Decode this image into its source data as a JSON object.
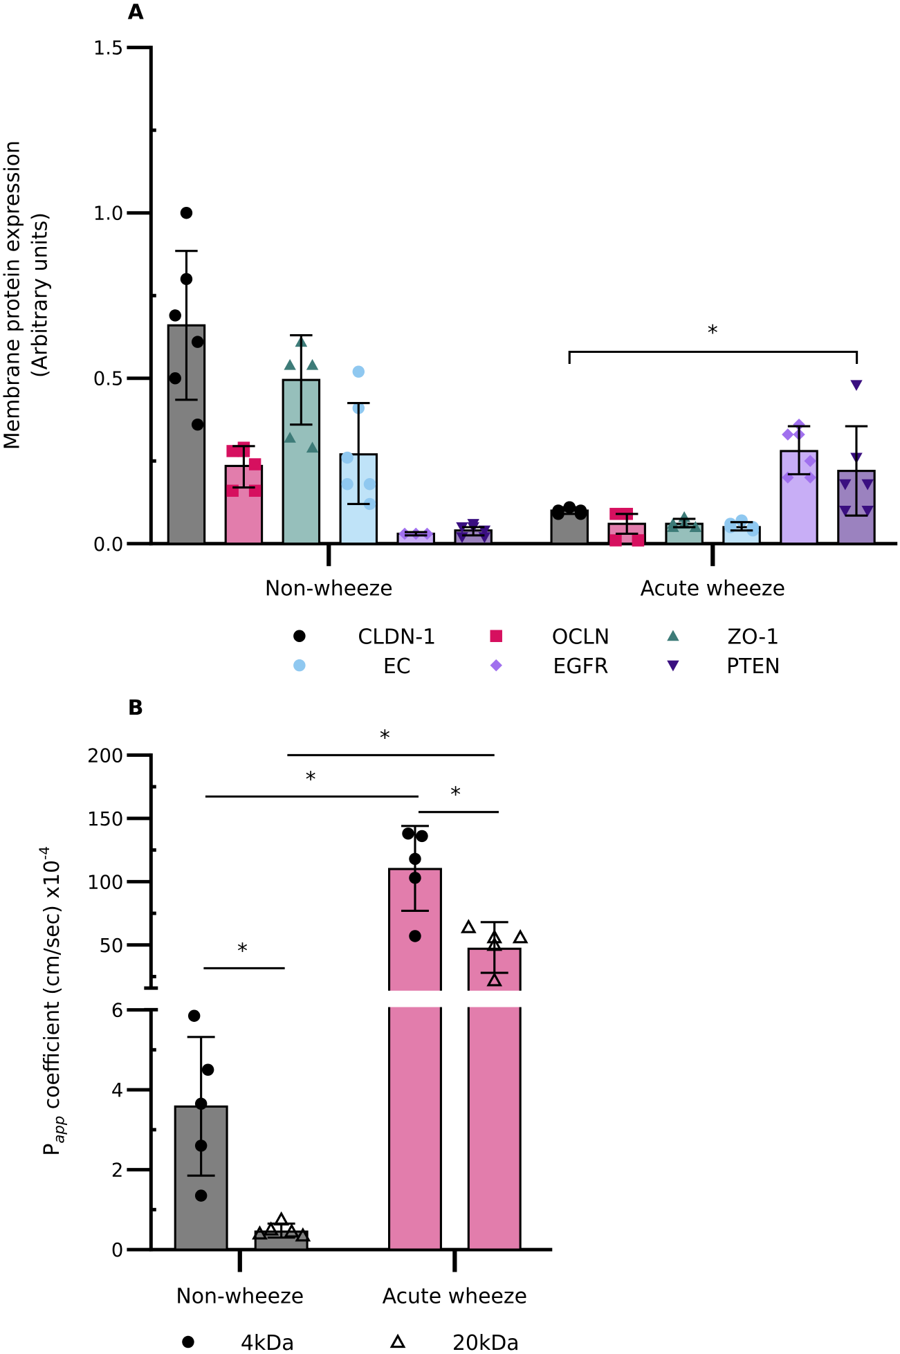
{
  "chart_data": [
    {
      "panel": "A",
      "type": "bar",
      "ylabel_line1": "Membrane protein expression",
      "ylabel_line2": "(Arbitrary units)",
      "ylim": [
        0,
        1.5
      ],
      "yticks": [
        "0.0",
        "0.5",
        "1.0",
        "1.5"
      ],
      "ytick_values": [
        0,
        0.5,
        1.0,
        1.5
      ],
      "categories": [
        "Non-wheeze",
        "Acute wheeze"
      ],
      "series": [
        {
          "name": "CLDN-1",
          "bar_color": "#808080",
          "marker_color": "#000000",
          "marker": "circle",
          "values": [
            0.66,
            0.1
          ],
          "err_hi": [
            0.885,
            0.11
          ],
          "err_lo": [
            0.435,
            0.09
          ],
          "points": [
            [
              1.0,
              0.8,
              0.69,
              0.61,
              0.5,
              0.36
            ],
            [
              0.11,
              0.11,
              0.1,
              0.1,
              0.09,
              0.09
            ]
          ]
        },
        {
          "name": "OCLN",
          "bar_color": "#e27dac",
          "marker_color": "#d6105f",
          "marker": "square",
          "values": [
            0.235,
            0.06
          ],
          "err_hi": [
            0.295,
            0.09
          ],
          "err_lo": [
            0.17,
            0.03
          ],
          "points": [
            [
              0.29,
              0.28,
              0.28,
              0.24,
              0.16,
              0.16
            ],
            [
              0.09,
              0.09,
              0.09,
              0.01,
              0.01,
              0.01
            ]
          ]
        },
        {
          "name": "ZO-1",
          "bar_color": "#96bfbb",
          "marker_color": "#3d7b78",
          "marker": "triangle-up",
          "values": [
            0.495,
            0.06
          ],
          "err_hi": [
            0.63,
            0.075
          ],
          "err_lo": [
            0.36,
            0.05
          ],
          "points": [
            [
              0.61,
              0.61,
              0.54,
              0.54,
              0.32,
              0.29
            ],
            [
              0.08,
              0.06,
              0.06,
              0.05,
              0.05,
              0.05
            ]
          ]
        },
        {
          "name": "EC",
          "bar_color": "#bfe3f8",
          "marker_color": "#8fc8f0",
          "marker": "circle",
          "values": [
            0.27,
            0.05
          ],
          "err_hi": [
            0.425,
            0.065
          ],
          "err_lo": [
            0.12,
            0.04
          ],
          "points": [
            [
              0.52,
              0.41,
              0.26,
              0.18,
              0.18,
              0.12
            ],
            [
              0.07,
              0.07,
              0.06,
              0.05,
              0.05,
              0.04
            ]
          ]
        },
        {
          "name": "EGFR",
          "bar_color": "#c8aef6",
          "marker_color": "#a070ee",
          "marker": "diamond",
          "values": [
            0.03,
            0.28
          ],
          "err_hi": [
            0.035,
            0.355
          ],
          "err_lo": [
            0.025,
            0.21
          ],
          "points": [
            [
              0.03,
              0.03,
              0.03,
              0.03,
              0.03,
              0.03
            ],
            [
              0.33,
              0.36,
              0.33,
              0.25,
              0.2,
              0.2
            ]
          ]
        },
        {
          "name": "PTEN",
          "bar_color": "#9b82bf",
          "marker_color": "#3a0f80",
          "marker": "triangle-down",
          "values": [
            0.04,
            0.22
          ],
          "err_hi": [
            0.05,
            0.355
          ],
          "err_lo": [
            0.025,
            0.085
          ],
          "points": [
            [
              0.06,
              0.05,
              0.05,
              0.04,
              0.02,
              0.02
            ],
            [
              0.48,
              0.26,
              0.18,
              0.18,
              0.1,
              0.1
            ]
          ]
        }
      ],
      "annotations": [
        {
          "text": "*",
          "from": "Acute wheeze CLDN-1",
          "to": "Acute wheeze PTEN",
          "y": 0.58
        }
      ]
    },
    {
      "panel": "B",
      "type": "bar",
      "ylabel_main": "P",
      "ylabel_sub": "app",
      "ylabel_rest": " coefficient (cm/sec) x10",
      "ylabel_sup": "-4",
      "yaxis": "broken",
      "ylim_lower": [
        0,
        6
      ],
      "ylim_upper": [
        16,
        200
      ],
      "yticks_lower": [
        "0",
        "2",
        "4",
        "6"
      ],
      "yticks_lower_values": [
        0,
        2,
        4,
        6
      ],
      "yticks_upper": [
        "50",
        "100",
        "150",
        "200"
      ],
      "yticks_upper_values": [
        50,
        100,
        150,
        200
      ],
      "categories": [
        "Non-wheeze",
        "Acute wheeze"
      ],
      "series": [
        {
          "name": "4kDa",
          "marker": "circle",
          "values": [
            3.58,
            110
          ],
          "err_hi": [
            5.32,
            144
          ],
          "err_lo": [
            1.85,
            77
          ],
          "points": [
            [
              5.85,
              4.5,
              3.65,
              2.6,
              1.35
            ],
            [
              138,
              136,
              118,
              103,
              57
            ]
          ]
        },
        {
          "name": "20kDa",
          "marker": "triangle-open",
          "values": [
            0.45,
            47
          ],
          "err_hi": [
            0.65,
            68
          ],
          "err_lo": [
            0.3,
            28
          ],
          "points": [
            [
              0.75,
              0.5,
              0.45,
              0.4,
              0.35
            ],
            [
              64,
              56,
              56,
              50,
              22
            ]
          ]
        }
      ],
      "bar_colors": [
        "#808080",
        "#e27dac"
      ],
      "annotations": [
        {
          "text": "*",
          "label": "NW 4kDa vs NW 20kDa"
        },
        {
          "text": "*",
          "label": "NW 4kDa vs AW 4kDa"
        },
        {
          "text": "*",
          "label": "NW 20kDa vs AW 20kDa"
        },
        {
          "text": "*",
          "label": "AW 4kDa vs AW 20kDa"
        }
      ]
    }
  ]
}
